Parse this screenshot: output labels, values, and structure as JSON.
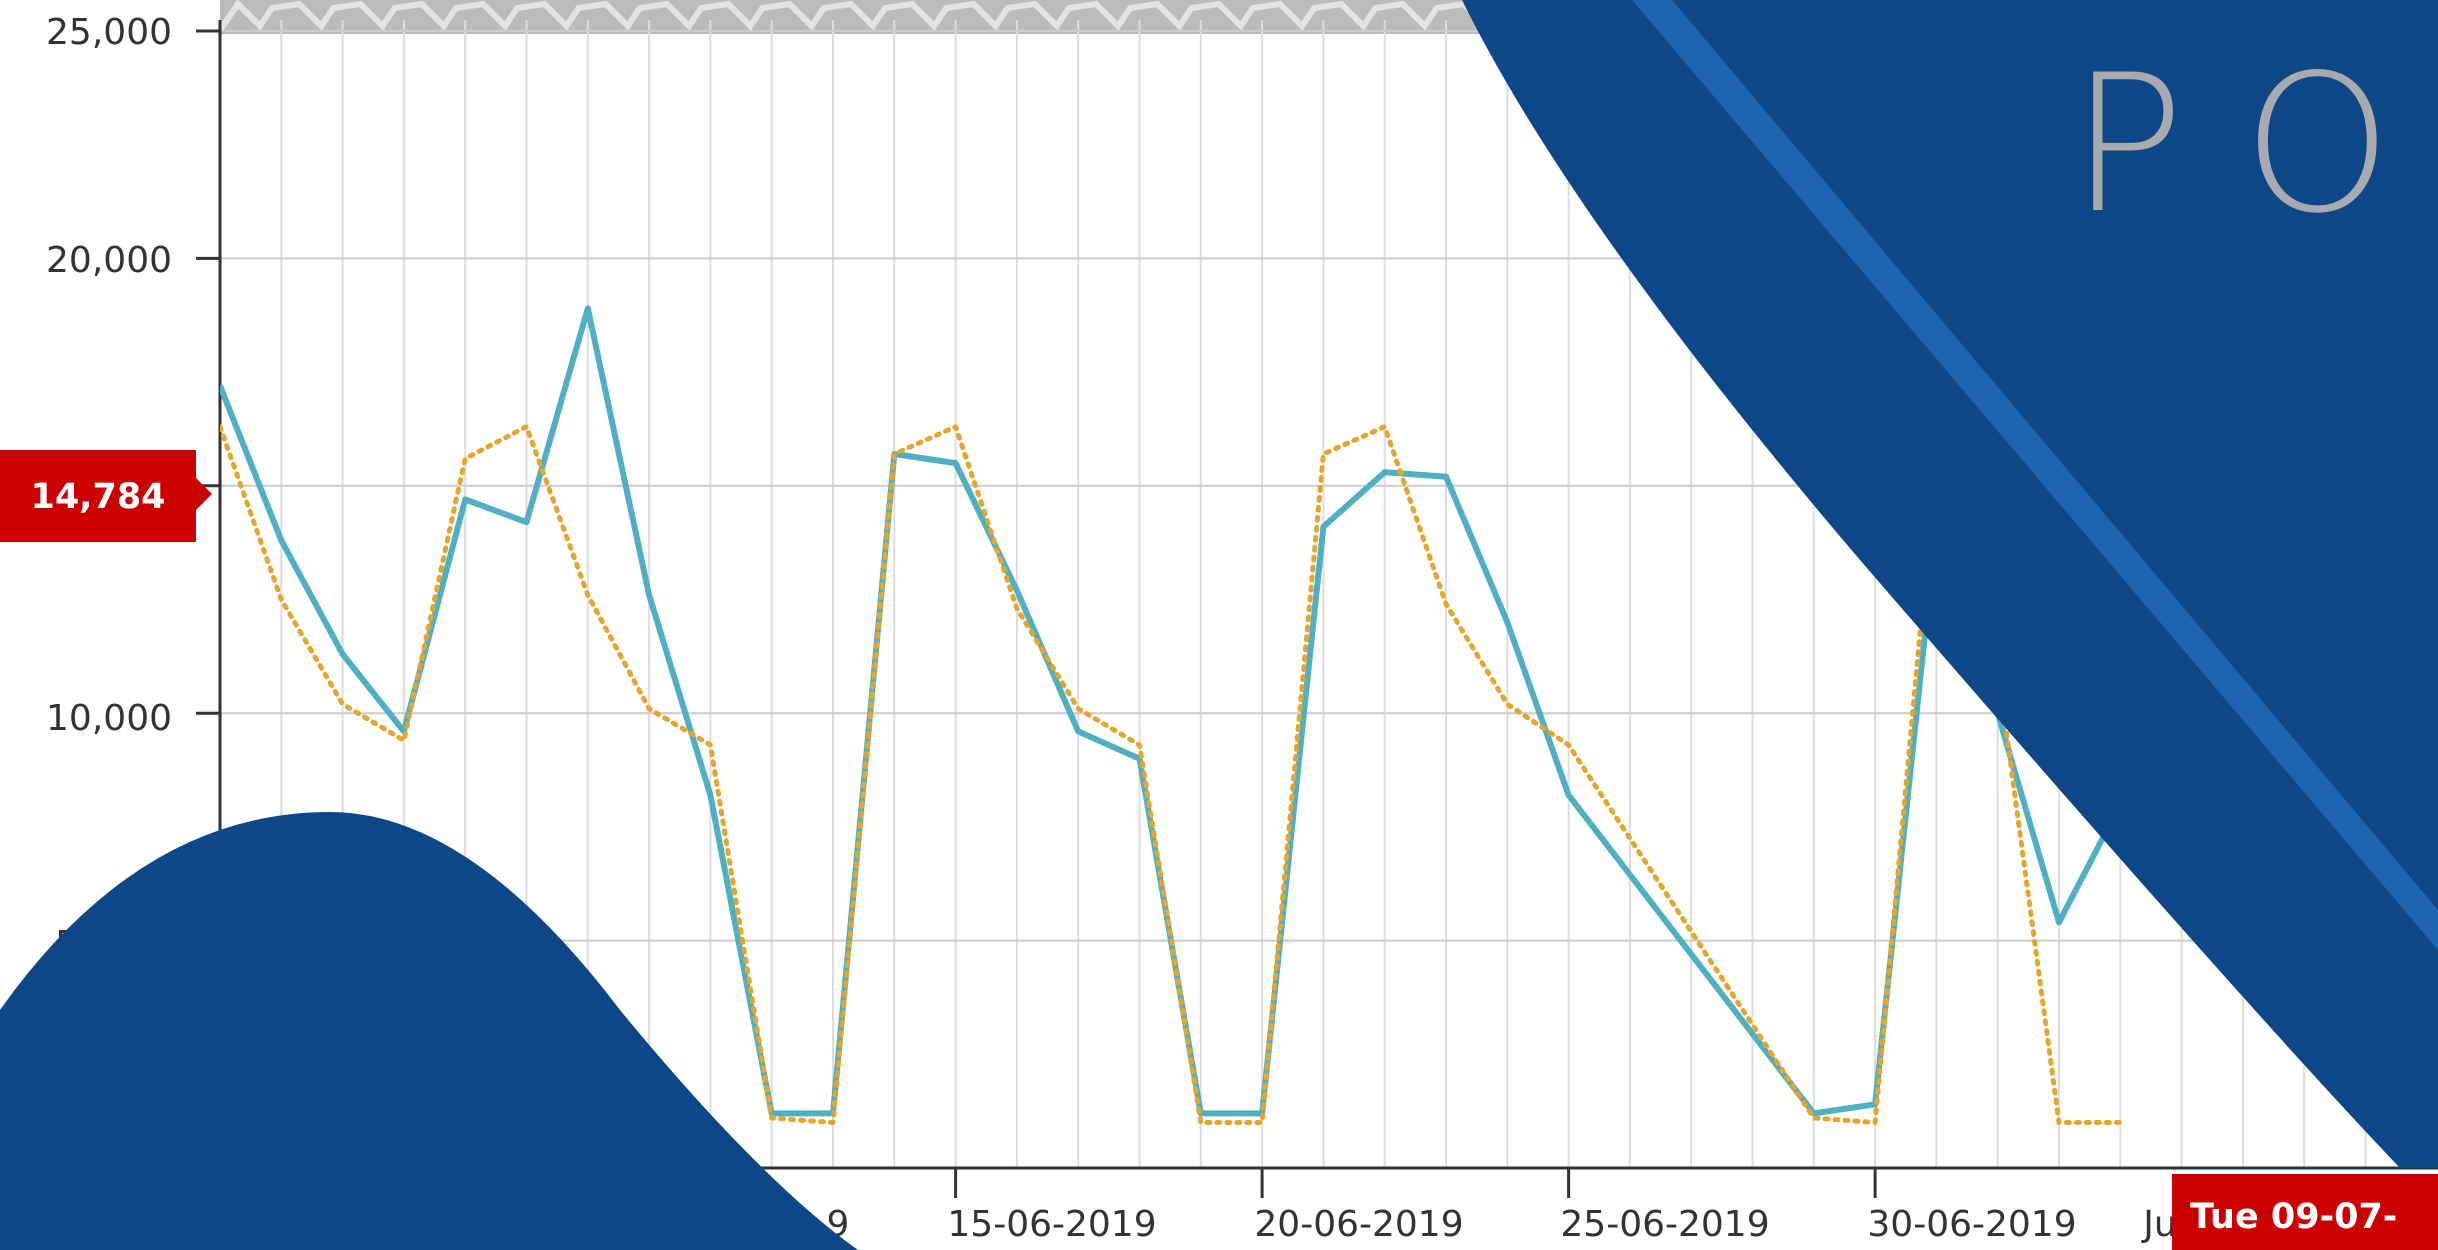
{
  "chart_data": {
    "type": "line",
    "x_axis": {
      "tick_labels": [
        "15-06-2019",
        "20-06-2019",
        "25-06-2019",
        "30-06-2019"
      ],
      "partial_tick_labels": {
        "left": "9",
        "right": "Ju"
      }
    },
    "y_axis": {
      "tick_labels": [
        "25,000",
        "20,000",
        "10,000",
        "5"
      ],
      "ylim": [
        0,
        25000
      ],
      "major_ticks": [
        0,
        5000,
        10000,
        15000,
        20000,
        25000
      ]
    },
    "grid": true,
    "series": [
      {
        "style": "solid",
        "color": "#4fafc3",
        "x": [
          "08-06-2019",
          "09-06-2019",
          "10-06-2019",
          "11-06-2019",
          "12-06-2019",
          "13-06-2019",
          "14-06-2019",
          "15-06-2019",
          "16-06-2019",
          "17-06-2019",
          "18-06-2019",
          "19-06-2019",
          "20-06-2019",
          "21-06-2019",
          "22-06-2019",
          "23-06-2019",
          "24-06-2019",
          "25-06-2019",
          "26-06-2019",
          "27-06-2019",
          "28-06-2019",
          "29-06-2019",
          "30-06-2019",
          "04-07-2019",
          "05-07-2019",
          "06-07-2019",
          "07-07-2019",
          "08-07-2019",
          "09-07-2019"
        ],
        "y": [
          17200,
          13800,
          11300,
          9600,
          14700,
          14200,
          18900,
          12600,
          8200,
          1200,
          1200,
          15700,
          15500,
          12700,
          9600,
          9000,
          1200,
          1200,
          14100,
          15300,
          15200,
          12000,
          8200,
          1200,
          1400,
          14100,
          10000,
          5400,
          8000
        ]
      },
      {
        "style": "dotted",
        "color": "#e6a62b",
        "x": [
          "08-06-2019",
          "09-06-2019",
          "10-06-2019",
          "11-06-2019",
          "12-06-2019",
          "13-06-2019",
          "14-06-2019",
          "15-06-2019",
          "16-06-2019",
          "17-06-2019",
          "18-06-2019",
          "19-06-2019",
          "20-06-2019",
          "21-06-2019",
          "22-06-2019",
          "23-06-2019",
          "24-06-2019",
          "25-06-2019",
          "26-06-2019",
          "27-06-2019",
          "28-06-2019",
          "29-06-2019",
          "30-06-2019",
          "04-07-2019",
          "05-07-2019",
          "06-07-2019",
          "07-07-2019",
          "08-07-2019",
          "09-07-2019"
        ],
        "y": [
          16300,
          12500,
          10200,
          9400,
          15600,
          16300,
          12600,
          10100,
          9300,
          1100,
          1000,
          15700,
          16300,
          12300,
          10100,
          9300,
          1000,
          1000,
          15700,
          16300,
          12400,
          10200,
          9300,
          1100,
          1000,
          15700,
          11000,
          1000,
          1000
        ]
      }
    ],
    "cursor": {
      "y_readout": "14,784",
      "x_readout": "Tue 09-07-"
    },
    "colors": {
      "background_blue": "#0d4787",
      "stripe_blue": "#1e64b0",
      "readout_red": "#cc0000",
      "navigator_gray": "#bbbbbb",
      "brand_text_gray": "#a8aaad"
    }
  },
  "overlay": {
    "brand_text": "POW"
  }
}
